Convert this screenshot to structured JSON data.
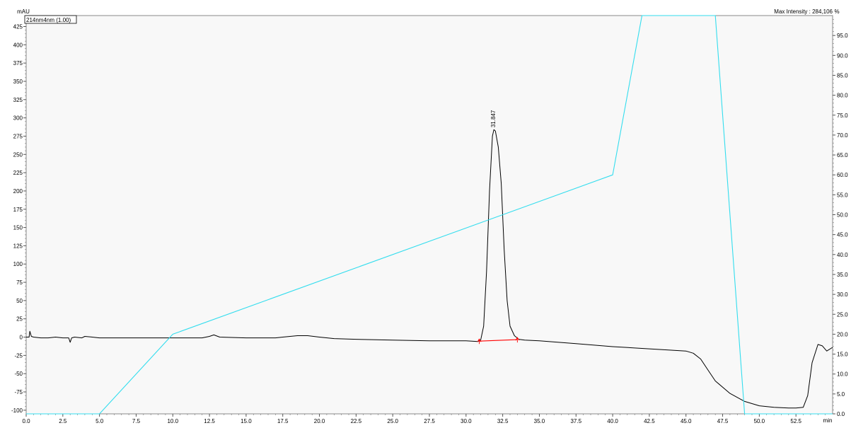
{
  "chart_data": {
    "type": "line",
    "title": "",
    "xlabel": "",
    "y_unit_left": "mAU",
    "y_unit_right": "%",
    "x_unit": "min",
    "legend_label": "214nm4nm (1.00)",
    "max_intensity_label": "Max Intensity : 284,106",
    "xlim": [
      0,
      55
    ],
    "ylim_left": [
      -105,
      440
    ],
    "ylim_right": [
      0,
      100
    ],
    "x_ticks": [
      "0.0",
      "2.5",
      "5.0",
      "7.5",
      "10.0",
      "12.5",
      "15.0",
      "17.5",
      "20.0",
      "22.5",
      "25.0",
      "27.5",
      "30.0",
      "32.5",
      "35.0",
      "37.5",
      "40.0",
      "42.5",
      "45.0",
      "47.5",
      "50.0",
      "52.5"
    ],
    "y_ticks_left": [
      "425",
      "400",
      "375",
      "350",
      "325",
      "300",
      "275",
      "250",
      "225",
      "200",
      "175",
      "150",
      "125",
      "100",
      "75",
      "50",
      "25",
      "0",
      "-25",
      "-50",
      "-75",
      "-100"
    ],
    "y_ticks_right": [
      "95.0",
      "90.0",
      "85.0",
      "80.0",
      "75.0",
      "70.0",
      "65.0",
      "60.0",
      "55.0",
      "50.0",
      "45.0",
      "40.0",
      "35.0",
      "30.0",
      "25.0",
      "20.0",
      "15.0",
      "10.0",
      "5.0",
      "0.0"
    ],
    "peak_labels": [
      {
        "label": "31.847",
        "x": 31.847,
        "y": 284
      }
    ],
    "series": [
      {
        "axis": "left",
        "color": "#000000",
        "x": [
          0.0,
          0.2,
          0.25,
          0.35,
          0.5,
          1.0,
          1.5,
          2.0,
          2.5,
          2.9,
          3.0,
          3.1,
          3.3,
          3.8,
          4.0,
          4.5,
          5.0,
          7.5,
          10.0,
          12.0,
          12.5,
          12.8,
          13.2,
          15.0,
          17.0,
          17.5,
          18.5,
          19.2,
          20.0,
          21.0,
          22.5,
          25.0,
          27.5,
          30.0,
          30.8,
          31.0,
          31.2,
          31.4,
          31.6,
          31.8,
          31.9,
          32.0,
          32.2,
          32.4,
          32.6,
          32.8,
          33.0,
          33.3,
          33.6,
          34.0,
          35.0,
          37.5,
          40.0,
          42.5,
          45.0,
          45.5,
          46.0,
          46.5,
          47.0,
          48.0,
          49.0,
          50.0,
          51.0,
          52.0,
          52.5,
          53.0,
          53.3,
          53.6,
          54.0,
          54.3,
          54.6,
          55.0
        ],
        "y": [
          0,
          0,
          8,
          1,
          0,
          -1,
          -1,
          0,
          -1,
          -1,
          -7,
          -1,
          0,
          -1,
          1,
          0,
          -1,
          -1,
          -1,
          -1,
          1,
          3,
          0,
          -1,
          -1,
          0,
          2,
          2,
          0,
          -2,
          -3,
          -4,
          -5,
          -5,
          -6,
          -4,
          15,
          90,
          200,
          275,
          284,
          282,
          260,
          210,
          120,
          50,
          15,
          2,
          -3,
          -4,
          -5,
          -9,
          -13,
          -16,
          -19,
          -22,
          -30,
          -45,
          -60,
          -77,
          -88,
          -94,
          -96,
          -97,
          -97,
          -96,
          -80,
          -35,
          -10,
          -12,
          -19,
          -14
        ]
      },
      {
        "axis": "left",
        "color": "#ff0000",
        "x": [
          30.9,
          33.5
        ],
        "y": [
          -5.5,
          -3.5
        ]
      },
      {
        "axis": "right",
        "color": "#33ddee",
        "x": [
          0.0,
          5.0,
          10.0,
          40.0,
          42.0,
          47.0,
          49.0,
          55.0
        ],
        "y": [
          0,
          0,
          20,
          60,
          100,
          100,
          0,
          0
        ]
      }
    ]
  }
}
